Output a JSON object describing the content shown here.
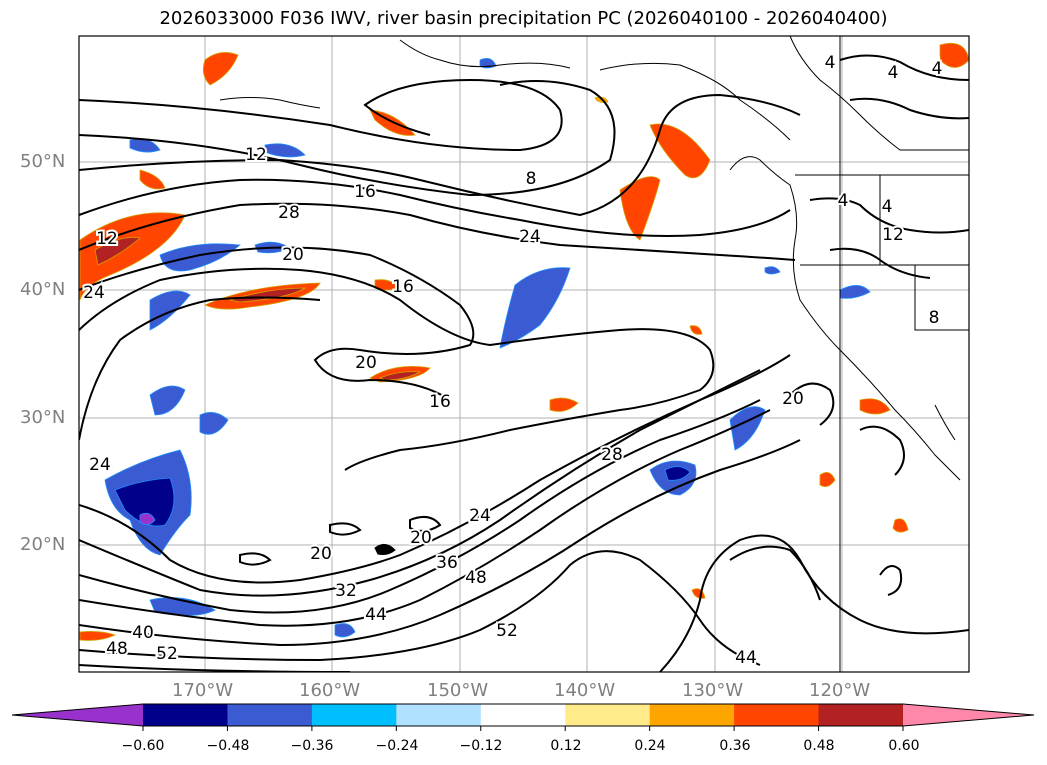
{
  "title": "2026033000 F036 IWV, river basin precipitation PC (2026040100 - 2026040400)",
  "map": {
    "lat_labels": [
      "50°N",
      "40°N",
      "30°N",
      "20°N"
    ],
    "lon_labels": [
      "170°W",
      "160°W",
      "150°W",
      "140°W",
      "130°W",
      "120°W"
    ],
    "contour_labels": [
      "4",
      "4",
      "4",
      "4",
      "4",
      "8",
      "8",
      "12",
      "12",
      "12",
      "16",
      "16",
      "16",
      "20",
      "20",
      "20",
      "20",
      "20",
      "24",
      "24",
      "24",
      "24",
      "28",
      "28",
      "32",
      "36",
      "40",
      "44",
      "44",
      "48",
      "48",
      "52",
      "52"
    ],
    "contour_color": "#000000",
    "gridline_color": "#a0a0a0"
  },
  "colorbar": {
    "colors": [
      "#9932cc",
      "#00008b",
      "#3a5bd1",
      "#00bfff",
      "#b0e2ff",
      "#ffffff",
      "#ffeb8a",
      "#ffa500",
      "#ff4500",
      "#b22222",
      "#ff88aa"
    ],
    "tick_labels": [
      "−0.60",
      "−0.48",
      "−0.36",
      "−0.24",
      "−0.12",
      "0.12",
      "0.24",
      "0.36",
      "0.48",
      "0.60"
    ]
  }
}
